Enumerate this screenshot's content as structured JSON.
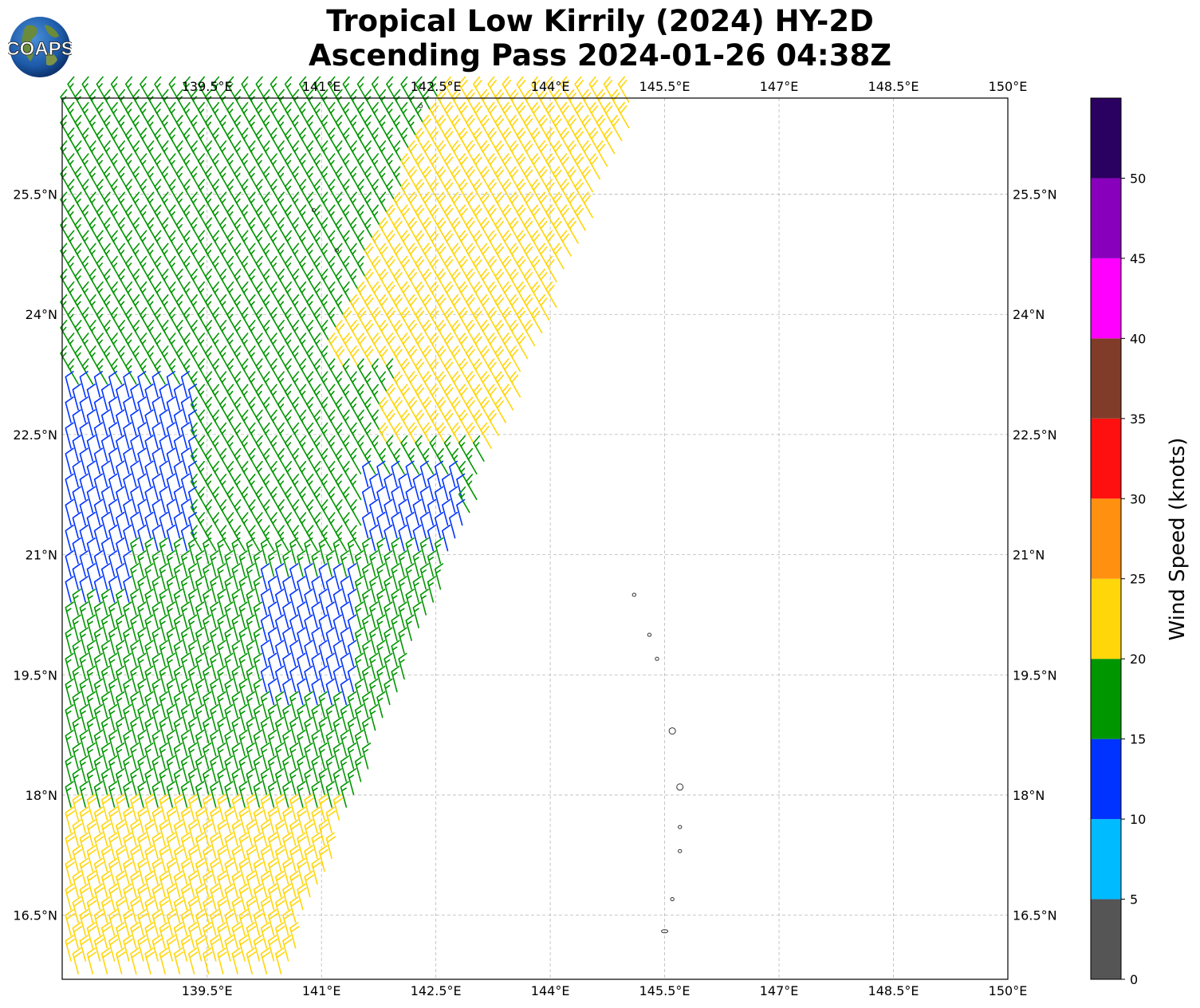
{
  "title": {
    "line1": "Tropical Low Kirrily (2024) HY-2D",
    "line2": "Ascending Pass 2024-01-26 04:38Z"
  },
  "logo": {
    "text": "COAPS",
    "icon": "globe-icon"
  },
  "map": {
    "lon_range": [
      137.6,
      150.0
    ],
    "lat_range": [
      15.7,
      26.7
    ],
    "lon_ticks": [
      {
        "value": 139.5,
        "label": "139.5°E"
      },
      {
        "value": 141.0,
        "label": "141°E"
      },
      {
        "value": 142.5,
        "label": "142.5°E"
      },
      {
        "value": 144.0,
        "label": "144°E"
      },
      {
        "value": 145.5,
        "label": "145.5°E"
      },
      {
        "value": 147.0,
        "label": "147°E"
      },
      {
        "value": 148.5,
        "label": "148.5°E"
      },
      {
        "value": 150.0,
        "label": "150°E"
      }
    ],
    "lat_ticks": [
      {
        "value": 25.5,
        "label": "25.5°N"
      },
      {
        "value": 24.0,
        "label": "24°N"
      },
      {
        "value": 22.5,
        "label": "22.5°N"
      },
      {
        "value": 21.0,
        "label": "21°N"
      },
      {
        "value": 19.5,
        "label": "19.5°N"
      },
      {
        "value": 18.0,
        "label": "18°N"
      },
      {
        "value": 16.5,
        "label": "16.5°N"
      }
    ],
    "grid": "dashed",
    "swath": {
      "description_units": "degrees",
      "east_edge_top_lon": 145.2,
      "east_edge_bottom_lon": 140.5
    },
    "wind_regions": [
      {
        "speed_kt": 22,
        "from_dir_deg": 330,
        "area": "northeast of swath, above 23.2N, east of 141.2E"
      },
      {
        "speed_kt": 17,
        "from_dir_deg": 330,
        "area": "northwest of swath, 21N to 26.5N"
      },
      {
        "speed_kt": 12,
        "from_dir_deg": 345,
        "area": "western edge 21N to 23N and patches 19N to 21.5N"
      },
      {
        "speed_kt": 17,
        "from_dir_deg": 345,
        "area": "central swath 18N to 21N"
      },
      {
        "speed_kt": 22,
        "from_dir_deg": 345,
        "area": "southwest, south of 17.8N"
      }
    ],
    "islands": [
      {
        "lon": 140.9,
        "lat": 25.3
      },
      {
        "lon": 141.2,
        "lat": 24.8
      },
      {
        "lon": 145.1,
        "lat": 20.5
      },
      {
        "lon": 145.3,
        "lat": 20.0
      },
      {
        "lon": 145.4,
        "lat": 19.7
      },
      {
        "lon": 145.6,
        "lat": 18.8
      },
      {
        "lon": 145.7,
        "lat": 18.1
      },
      {
        "lon": 145.7,
        "lat": 17.6
      },
      {
        "lon": 145.7,
        "lat": 17.3
      },
      {
        "lon": 145.6,
        "lat": 16.7
      },
      {
        "lon": 145.5,
        "lat": 16.3
      },
      {
        "lon": 142.3,
        "lat": 26.6
      }
    ]
  },
  "colorbar": {
    "title": "Wind Speed (knots)",
    "bins": [
      {
        "min": 0,
        "max": 5,
        "color": "#555555"
      },
      {
        "min": 5,
        "max": 10,
        "color": "#00bbff"
      },
      {
        "min": 10,
        "max": 15,
        "color": "#0033ff"
      },
      {
        "min": 15,
        "max": 20,
        "color": "#009600"
      },
      {
        "min": 20,
        "max": 25,
        "color": "#ffd60a"
      },
      {
        "min": 25,
        "max": 30,
        "color": "#ff9010"
      },
      {
        "min": 30,
        "max": 35,
        "color": "#ff1010"
      },
      {
        "min": 35,
        "max": 40,
        "color": "#803c28"
      },
      {
        "min": 40,
        "max": 45,
        "color": "#ff00ff"
      },
      {
        "min": 45,
        "max": 50,
        "color": "#8800bb"
      },
      {
        "min": 50,
        "max": 55,
        "color": "#2a0060"
      }
    ],
    "tick_labels": [
      "0",
      "5",
      "10",
      "15",
      "20",
      "25",
      "30",
      "35",
      "40",
      "45",
      "50"
    ]
  }
}
